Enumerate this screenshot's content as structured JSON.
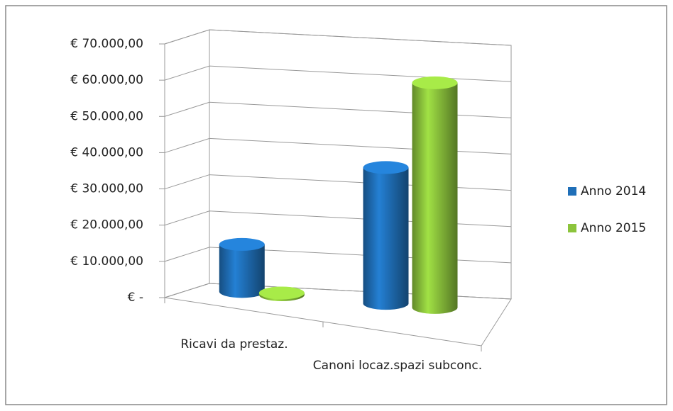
{
  "chart_data": {
    "type": "bar3d",
    "categories": [
      "Ricavi da prestaz.",
      "Canoni locaz.spazi subconc."
    ],
    "series": [
      {
        "name": "Anno 2014",
        "color": "#1f6fb8",
        "values": [
          13000,
          37500
        ]
      },
      {
        "name": "Anno 2015",
        "color": "#8cc43c",
        "values": [
          500,
          62000
        ]
      }
    ],
    "ylim": [
      0,
      70000
    ],
    "yticks": [
      {
        "value": 0,
        "label": "€ -"
      },
      {
        "value": 10000,
        "label": "€ 10.000,00"
      },
      {
        "value": 20000,
        "label": "€ 20.000,00"
      },
      {
        "value": 30000,
        "label": "€ 30.000,00"
      },
      {
        "value": 40000,
        "label": "€ 40.000,00"
      },
      {
        "value": 50000,
        "label": "€ 50.000,00"
      },
      {
        "value": 60000,
        "label": "€ 60.000,00"
      },
      {
        "value": 70000,
        "label": "€ 70.000,00"
      }
    ],
    "grid": true,
    "legend": "right"
  }
}
